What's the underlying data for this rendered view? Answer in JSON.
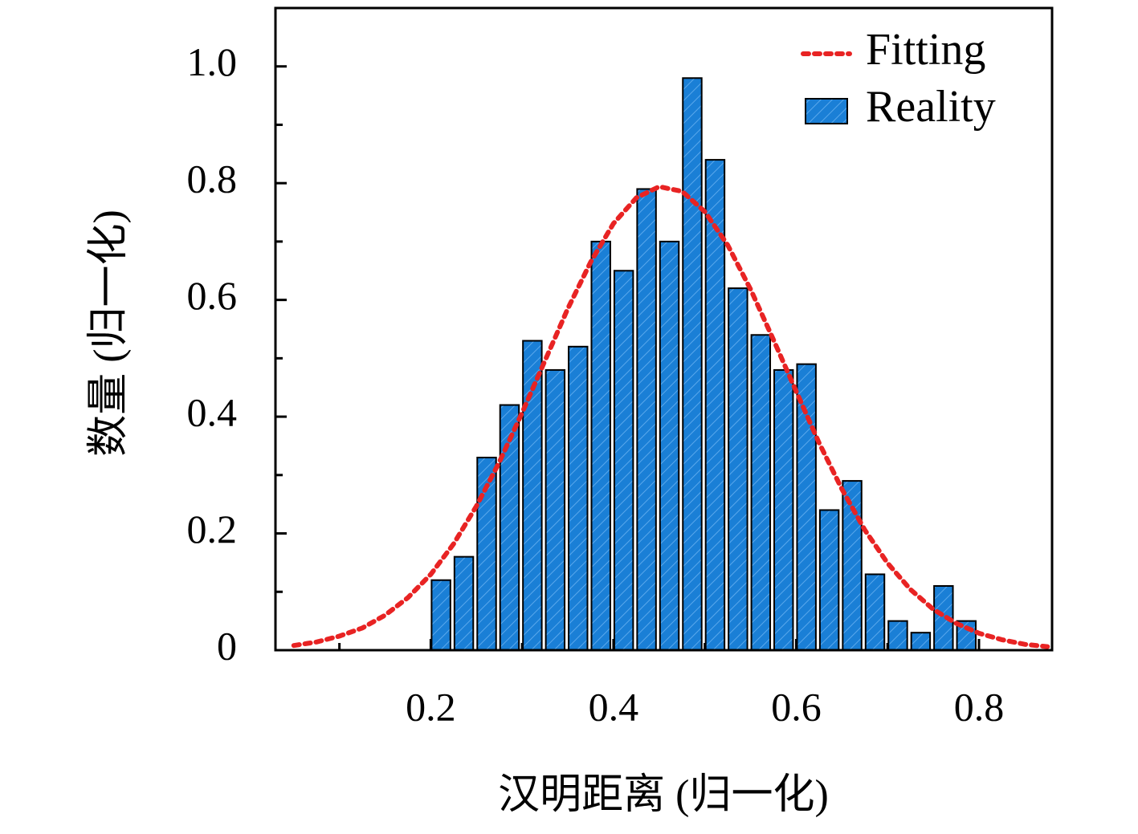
{
  "chart_data": {
    "type": "histogram",
    "xlabel": "汉明距离 (归一化)",
    "ylabel": "数量 (归一化)",
    "xlim": [
      0.03,
      0.88
    ],
    "ylim": [
      0,
      1.1
    ],
    "xticks": [
      0.2,
      0.4,
      0.6,
      0.8
    ],
    "x_minor_ticks": [
      0.1,
      0.3,
      0.5,
      0.7
    ],
    "yticks": [
      0,
      0.2,
      0.4,
      0.6,
      0.8,
      {
        "value": 1,
        "label": "1.0"
      }
    ],
    "y_minor_ticks": [
      0.1,
      0.3,
      0.5,
      0.7,
      0.9
    ],
    "legend": "upper right",
    "series": [
      {
        "name": "Fitting",
        "type": "line",
        "color": "#e82323",
        "x": [
          0.05,
          0.075,
          0.1,
          0.125,
          0.15,
          0.175,
          0.2,
          0.225,
          0.25,
          0.275,
          0.3,
          0.325,
          0.35,
          0.375,
          0.4,
          0.425,
          0.45,
          0.475,
          0.5,
          0.525,
          0.55,
          0.575,
          0.6,
          0.625,
          0.65,
          0.675,
          0.7,
          0.725,
          0.75,
          0.775,
          0.8,
          0.825,
          0.85,
          0.875
        ],
        "values": [
          0.008,
          0.014,
          0.024,
          0.038,
          0.06,
          0.09,
          0.13,
          0.182,
          0.247,
          0.322,
          0.407,
          0.496,
          0.585,
          0.665,
          0.731,
          0.775,
          0.794,
          0.786,
          0.751,
          0.694,
          0.618,
          0.532,
          0.443,
          0.355,
          0.276,
          0.206,
          0.149,
          0.104,
          0.07,
          0.046,
          0.029,
          0.018,
          0.01,
          0.006
        ]
      },
      {
        "name": "Reality",
        "type": "histogram",
        "color": "#1a7fd6",
        "bins": [
          0.2,
          0.225,
          0.25,
          0.275,
          0.3,
          0.325,
          0.35,
          0.375,
          0.4,
          0.425,
          0.45,
          0.475,
          0.5,
          0.525,
          0.55,
          0.575,
          0.6,
          0.625,
          0.65,
          0.675,
          0.7,
          0.725,
          0.75,
          0.775,
          0.8
        ],
        "values": [
          0.12,
          0.16,
          0.33,
          0.42,
          0.53,
          0.48,
          0.52,
          0.7,
          0.65,
          0.79,
          0.7,
          0.98,
          0.84,
          0.62,
          0.54,
          0.48,
          0.49,
          0.24,
          0.29,
          0.13,
          0.05,
          0.03,
          0.11,
          0.05
        ]
      }
    ]
  }
}
